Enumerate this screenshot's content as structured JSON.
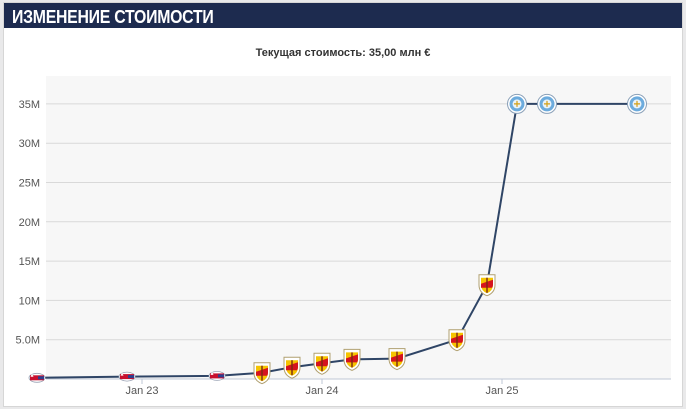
{
  "header": {
    "title": "ИЗМЕНЕНИЕ СТОИМОСТИ"
  },
  "colors": {
    "header_bg": "#1d2b4f",
    "line": "#2f4566",
    "plot_bg": "#f7f7f7",
    "grid": "#d9d9d9",
    "club_csk": "#c8102e",
    "club_lens_yellow": "#f5c400",
    "club_lens_red": "#d5141e",
    "club_mancity": "#6cabdd"
  },
  "chart_data": {
    "type": "line",
    "title": "Текущая стоимость: 35,00 млн €",
    "xlabel": "",
    "ylabel": "",
    "ylim": [
      0,
      35
    ],
    "yticks": [
      {
        "value": 5,
        "label": "5.0M"
      },
      {
        "value": 10,
        "label": "10M"
      },
      {
        "value": 15,
        "label": "15M"
      },
      {
        "value": 20,
        "label": "20M"
      },
      {
        "value": 25,
        "label": "25M"
      },
      {
        "value": 30,
        "label": "30M"
      },
      {
        "value": 35,
        "label": "35M"
      }
    ],
    "xticks": [
      {
        "date": "2023-01",
        "label": "Jan 23"
      },
      {
        "date": "2024-01",
        "label": "Jan 24"
      },
      {
        "date": "2025-01",
        "label": "Jan 25"
      }
    ],
    "grid": true,
    "points": [
      {
        "date": "2022-06",
        "value": 0.15,
        "club": "csk"
      },
      {
        "date": "2022-12",
        "value": 0.3,
        "club": "csk"
      },
      {
        "date": "2023-06",
        "value": 0.4,
        "club": "csk"
      },
      {
        "date": "2023-09",
        "value": 0.8,
        "club": "lens"
      },
      {
        "date": "2023-11",
        "value": 1.5,
        "club": "lens"
      },
      {
        "date": "2024-01",
        "value": 2.0,
        "club": "lens"
      },
      {
        "date": "2024-03",
        "value": 2.5,
        "club": "lens"
      },
      {
        "date": "2024-06",
        "value": 2.6,
        "club": "lens"
      },
      {
        "date": "2024-10",
        "value": 5.0,
        "club": "lens"
      },
      {
        "date": "2024-12",
        "value": 12.0,
        "club": "lens"
      },
      {
        "date": "2025-02",
        "value": 35.0,
        "club": "mancity"
      },
      {
        "date": "2025-04",
        "value": 35.0,
        "club": "mancity"
      },
      {
        "date": "2025-10",
        "value": 35.0,
        "club": "mancity"
      }
    ]
  }
}
